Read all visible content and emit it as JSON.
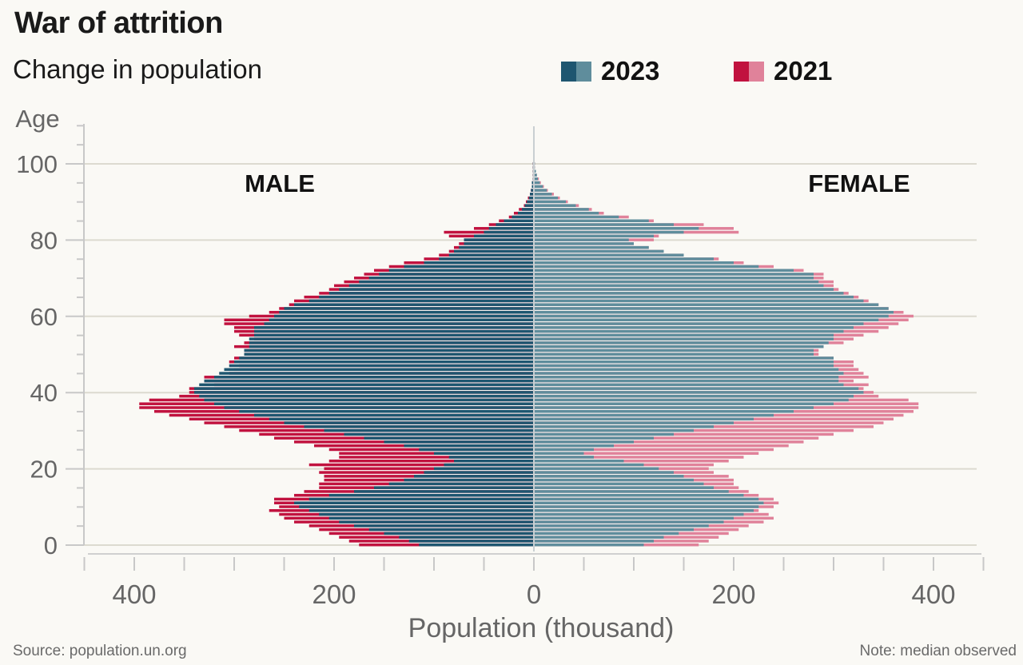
{
  "header": {
    "title": "War of attrition",
    "subtitle": "Change in population"
  },
  "legend": [
    {
      "label": "2023",
      "male_color": "#1e5670",
      "female_color": "#5f8d9c"
    },
    {
      "label": "2021",
      "male_color": "#c1123f",
      "female_color": "#e0829a"
    }
  ],
  "footer": {
    "source": "Source: population.un.org",
    "note": "Note: median observed"
  },
  "chart_data": {
    "type": "bar",
    "subtype": "population-pyramid",
    "title": "War of attrition",
    "subtitle": "Change in population",
    "xlabel": "Population (thousand)",
    "ylabel": "Age",
    "xlim": [
      -450,
      450
    ],
    "ylim": [
      0,
      100
    ],
    "x_ticks": [
      400,
      200,
      0,
      200,
      400
    ],
    "y_ticks": [
      0,
      20,
      40,
      60,
      80,
      100
    ],
    "grid": true,
    "side_labels": {
      "left": "MALE",
      "right": "FEMALE"
    },
    "legend_position": "top-right",
    "ages": [
      0,
      1,
      2,
      3,
      4,
      5,
      6,
      7,
      8,
      9,
      10,
      11,
      12,
      13,
      14,
      15,
      16,
      17,
      18,
      19,
      20,
      21,
      22,
      23,
      24,
      25,
      26,
      27,
      28,
      29,
      30,
      31,
      32,
      33,
      34,
      35,
      36,
      37,
      38,
      39,
      40,
      41,
      42,
      43,
      44,
      45,
      46,
      47,
      48,
      49,
      50,
      51,
      52,
      53,
      54,
      55,
      56,
      57,
      58,
      59,
      60,
      61,
      62,
      63,
      64,
      65,
      66,
      67,
      68,
      69,
      70,
      71,
      72,
      73,
      74,
      75,
      76,
      77,
      78,
      79,
      80,
      81,
      82,
      83,
      84,
      85,
      86,
      87,
      88,
      89,
      90,
      91,
      92,
      93,
      94,
      95,
      96,
      97,
      98,
      99,
      100
    ],
    "series": [
      {
        "name": "2023",
        "sex": "male",
        "values": [
          115,
          125,
          135,
          150,
          165,
          180,
          195,
          205,
          215,
          225,
          235,
          240,
          225,
          205,
          180,
          160,
          145,
          130,
          120,
          110,
          100,
          90,
          80,
          85,
          100,
          115,
          130,
          150,
          170,
          190,
          210,
          230,
          250,
          265,
          280,
          295,
          310,
          320,
          330,
          335,
          340,
          340,
          335,
          330,
          320,
          315,
          310,
          305,
          300,
          295,
          290,
          290,
          285,
          285,
          285,
          280,
          280,
          280,
          270,
          265,
          260,
          255,
          250,
          240,
          225,
          215,
          205,
          195,
          185,
          175,
          165,
          155,
          145,
          130,
          110,
          95,
          85,
          80,
          75,
          70,
          70,
          60,
          50,
          45,
          38,
          30,
          22,
          16,
          12,
          9,
          7,
          5,
          4,
          3,
          2,
          2,
          1,
          1,
          1,
          1,
          1
        ]
      },
      {
        "name": "2021",
        "sex": "male",
        "values": [
          175,
          185,
          195,
          205,
          215,
          225,
          240,
          250,
          255,
          265,
          255,
          260,
          260,
          240,
          230,
          215,
          215,
          210,
          210,
          215,
          210,
          225,
          205,
          195,
          195,
          205,
          220,
          240,
          260,
          275,
          295,
          310,
          330,
          345,
          365,
          380,
          395,
          395,
          385,
          355,
          345,
          345,
          320,
          330,
          330,
          305,
          300,
          295,
          305,
          300,
          290,
          290,
          300,
          290,
          280,
          295,
          300,
          300,
          310,
          310,
          285,
          265,
          255,
          245,
          240,
          230,
          215,
          205,
          200,
          190,
          180,
          170,
          160,
          145,
          130,
          110,
          95,
          85,
          80,
          75,
          70,
          85,
          90,
          60,
          45,
          35,
          25,
          20,
          15,
          10,
          8,
          6,
          4,
          3,
          2,
          2,
          1,
          1,
          1,
          1,
          1
        ]
      },
      {
        "name": "2023",
        "sex": "female",
        "values": [
          110,
          120,
          130,
          145,
          160,
          175,
          190,
          200,
          210,
          220,
          225,
          230,
          225,
          210,
          195,
          180,
          170,
          160,
          150,
          140,
          125,
          110,
          90,
          60,
          50,
          60,
          80,
          100,
          120,
          140,
          160,
          180,
          200,
          220,
          240,
          260,
          280,
          300,
          315,
          320,
          330,
          325,
          310,
          305,
          305,
          310,
          305,
          300,
          300,
          300,
          280,
          280,
          290,
          295,
          300,
          300,
          310,
          320,
          330,
          345,
          355,
          360,
          355,
          345,
          330,
          320,
          310,
          300,
          290,
          285,
          280,
          280,
          260,
          225,
          200,
          180,
          150,
          130,
          115,
          100,
          95,
          120,
          150,
          165,
          140,
          115,
          85,
          65,
          55,
          42,
          32,
          24,
          18,
          13,
          9,
          6,
          4,
          3,
          2,
          1,
          1
        ]
      },
      {
        "name": "2021",
        "sex": "female",
        "values": [
          165,
          175,
          185,
          195,
          205,
          215,
          230,
          240,
          235,
          225,
          240,
          245,
          240,
          225,
          215,
          205,
          200,
          200,
          195,
          180,
          175,
          180,
          195,
          210,
          225,
          240,
          255,
          270,
          285,
          300,
          320,
          340,
          350,
          360,
          370,
          380,
          385,
          385,
          375,
          345,
          340,
          330,
          335,
          320,
          335,
          330,
          325,
          320,
          320,
          300,
          285,
          285,
          290,
          310,
          320,
          330,
          345,
          355,
          365,
          375,
          380,
          370,
          355,
          345,
          335,
          325,
          315,
          305,
          300,
          300,
          290,
          290,
          270,
          240,
          210,
          185,
          150,
          130,
          115,
          100,
          120,
          125,
          205,
          200,
          170,
          120,
          95,
          70,
          58,
          45,
          34,
          26,
          20,
          14,
          10,
          7,
          5,
          3,
          2,
          1,
          1
        ]
      }
    ]
  }
}
